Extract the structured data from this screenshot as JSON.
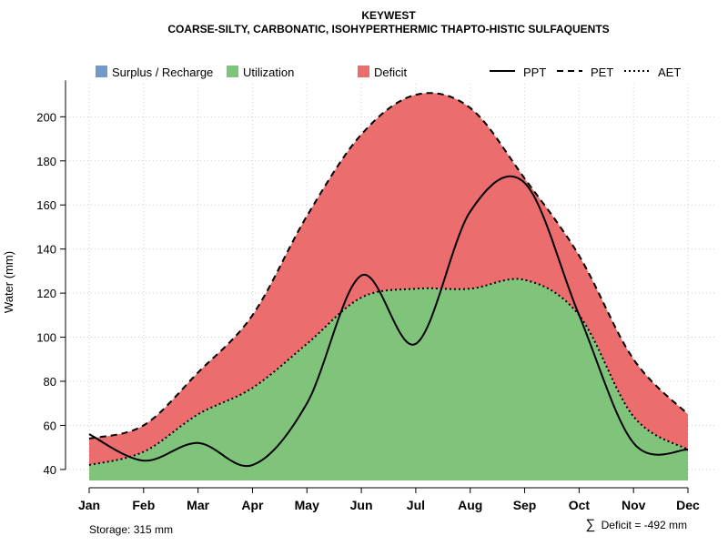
{
  "chart_data": {
    "type": "area",
    "title": "KEYWEST",
    "subtitle": "COARSE-SILTY, CARBONATIC, ISOHYPERTHERMIC THAPTO-HISTIC SULFAQUENTS",
    "ylabel": "Water (mm)",
    "xlabel": "",
    "categories": [
      "Jan",
      "Feb",
      "Mar",
      "Apr",
      "May",
      "Jun",
      "Jul",
      "Aug",
      "Sep",
      "Oct",
      "Nov",
      "Dec"
    ],
    "y_ticks": [
      40,
      60,
      80,
      100,
      120,
      140,
      160,
      180,
      200
    ],
    "ylim": [
      35,
      215
    ],
    "grid": true,
    "legend_position": "top",
    "series": [
      {
        "name": "PPT",
        "line": "solid",
        "values": [
          56,
          44,
          52,
          42,
          70,
          128,
          97,
          157,
          170,
          110,
          52,
          49
        ]
      },
      {
        "name": "PET",
        "line": "dashed",
        "values": [
          54,
          60,
          84,
          110,
          155,
          192,
          210,
          204,
          172,
          137,
          90,
          65
        ]
      },
      {
        "name": "AET",
        "line": "dotted",
        "values": [
          42,
          48,
          65,
          77,
          97,
          118,
          122,
          122,
          126,
          110,
          64,
          49
        ]
      }
    ],
    "areas": [
      {
        "name": "Surplus / Recharge",
        "color": "#7399c6"
      },
      {
        "name": "Utilization",
        "color": "#80c47c"
      },
      {
        "name": "Deficit",
        "color": "#eb6d6d"
      }
    ],
    "annotations": {
      "storage": "Storage: 315 mm",
      "deficit_symbol": "∑",
      "deficit": "Deficit = -492 mm"
    }
  }
}
